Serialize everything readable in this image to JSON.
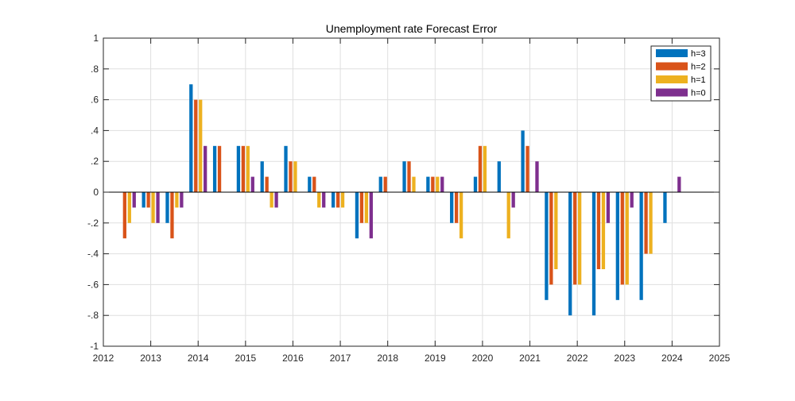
{
  "chart_data": {
    "type": "bar",
    "title": "Unemployment rate Forecast Error",
    "xlabel": "",
    "ylabel": "",
    "xlim": [
      2012,
      2025
    ],
    "ylim": [
      -1,
      1
    ],
    "x_ticks": [
      2012,
      2013,
      2014,
      2015,
      2016,
      2017,
      2018,
      2019,
      2020,
      2021,
      2022,
      2023,
      2024,
      2025
    ],
    "y_ticks": [
      -1,
      -0.8,
      -0.6,
      -0.4,
      -0.2,
      0,
      0.2,
      0.4,
      0.6,
      0.8,
      1
    ],
    "grid": true,
    "legend_position": "top-right",
    "x": [
      2012.5,
      2013.0,
      2013.5,
      2014.0,
      2014.5,
      2015.0,
      2015.5,
      2016.0,
      2016.5,
      2017.0,
      2017.5,
      2018.0,
      2018.5,
      2019.0,
      2019.5,
      2020.0,
      2020.5,
      2021.0,
      2021.5,
      2022.0,
      2022.5,
      2023.0,
      2023.5,
      2024.0
    ],
    "series": [
      {
        "name": "h=3",
        "color": "#0072BD",
        "values": [
          0,
          -0.1,
          -0.2,
          0.7,
          0.3,
          0.3,
          0.2,
          0.3,
          0.1,
          -0.1,
          -0.3,
          0.1,
          0.2,
          0.1,
          -0.2,
          0.1,
          0.2,
          0.4,
          -0.7,
          -0.8,
          -0.8,
          -0.7,
          -0.7,
          -0.2
        ]
      },
      {
        "name": "h=2",
        "color": "#D95319",
        "values": [
          -0.3,
          -0.1,
          -0.3,
          0.6,
          0.3,
          0.3,
          0.1,
          0.2,
          0.1,
          -0.1,
          -0.2,
          0.1,
          0.2,
          0.1,
          -0.2,
          0.3,
          0,
          0.3,
          -0.6,
          -0.6,
          -0.5,
          -0.6,
          -0.4,
          0
        ]
      },
      {
        "name": "h=1",
        "color": "#EDB120",
        "values": [
          -0.2,
          -0.2,
          -0.1,
          0.6,
          0,
          0.3,
          -0.1,
          0.2,
          -0.1,
          -0.1,
          -0.2,
          0,
          0.1,
          0.1,
          -0.3,
          0.3,
          -0.3,
          0,
          -0.5,
          -0.6,
          -0.5,
          -0.6,
          -0.4,
          0
        ]
      },
      {
        "name": "h=0",
        "color": "#7E2F8E",
        "values": [
          -0.1,
          -0.2,
          -0.1,
          0.3,
          0,
          0.1,
          -0.1,
          0,
          -0.1,
          0,
          -0.3,
          0,
          0,
          0.1,
          0,
          0,
          -0.1,
          0.2,
          0,
          0,
          -0.2,
          -0.1,
          0,
          0.1
        ]
      }
    ]
  }
}
